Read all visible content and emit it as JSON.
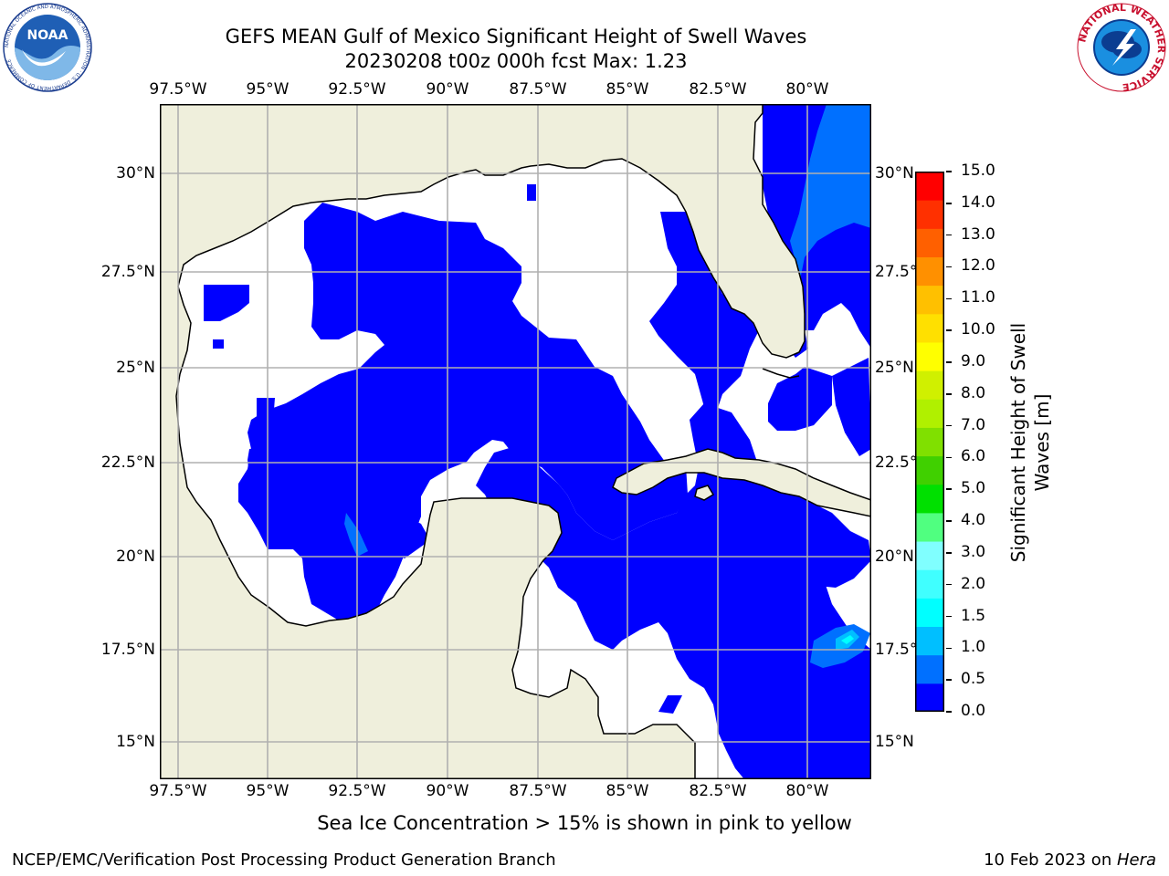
{
  "title_line1": "GEFS MEAN Gulf of Mexico Significant Height of Swell Waves",
  "title_line2": "20230208 t00z 000h fcst   Max: 1.23",
  "noaa_logo": {
    "center_text": "NOAA",
    "ring_text": "NATIONAL OCEANIC AND ATMOSPHERIC ADMINISTRATION · U.S. DEPARTMENT OF COMMERCE"
  },
  "nws_logo": {
    "ring_text": "NATIONAL WEATHER SERVICE"
  },
  "lon_labels": [
    "97.5°W",
    "95°W",
    "92.5°W",
    "90°W",
    "87.5°W",
    "85°W",
    "82.5°W",
    "80°W"
  ],
  "lat_labels": [
    "30°N",
    "27.5°N",
    "25°N",
    "22.5°N",
    "20°N",
    "17.5°N",
    "15°N"
  ],
  "colorbar": {
    "label_line1": "Significant Height of Swell",
    "label_line2": "Waves [m]",
    "ticks": [
      "15.0",
      "14.0",
      "13.0",
      "12.0",
      "11.0",
      "10.0",
      "9.0",
      "8.0",
      "7.0",
      "6.0",
      "5.0",
      "4.0",
      "3.0",
      "2.0",
      "1.5",
      "1.0",
      "0.5",
      "0.0"
    ],
    "colors_bottom_to_top": [
      "#0000ff",
      "#0070ff",
      "#00bfff",
      "#00ffff",
      "#40ffff",
      "#80ffff",
      "#50ff80",
      "#00e000",
      "#40d000",
      "#80e000",
      "#b0f000",
      "#d0f000",
      "#ffff00",
      "#ffe000",
      "#ffc000",
      "#ff9000",
      "#ff6000",
      "#ff3000",
      "#ff0000"
    ]
  },
  "map_colors": {
    "land": "#efefdc",
    "ocean_low": "#0000ff",
    "ocean_mid": "#0070ff",
    "ocean_high": "#00bfff",
    "grid": "#b0b0b0"
  },
  "footer_note": "Sea Ice Concentration > 15% is shown in pink to yellow",
  "footer_left": "NCEP/EMC/Verification Post Processing Product Generation Branch",
  "footer_right_date": "10 Feb 2023 on ",
  "footer_right_machine": "Hera"
}
